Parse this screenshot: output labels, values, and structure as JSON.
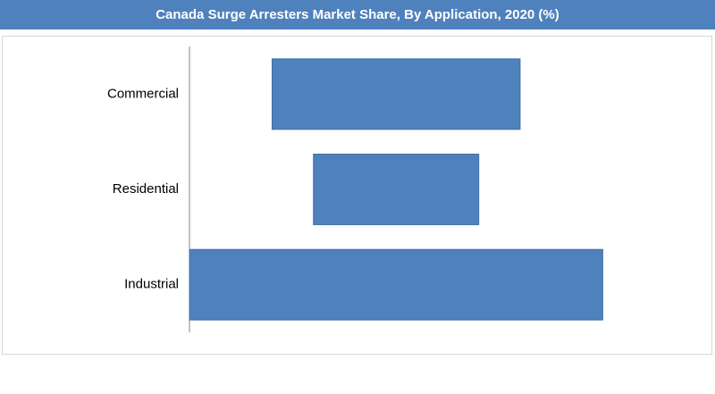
{
  "chart_data": {
    "type": "floating-bar",
    "title": "Canada Surge Arresters Market Share, By Application, 2020 (%)",
    "categories": [
      "Commercial",
      "Residential",
      "Industrial"
    ],
    "ranges": [
      [
        16,
        64
      ],
      [
        24,
        56
      ],
      [
        0,
        80
      ]
    ],
    "color": "#4f81bd",
    "xlim": [
      0,
      100
    ]
  }
}
